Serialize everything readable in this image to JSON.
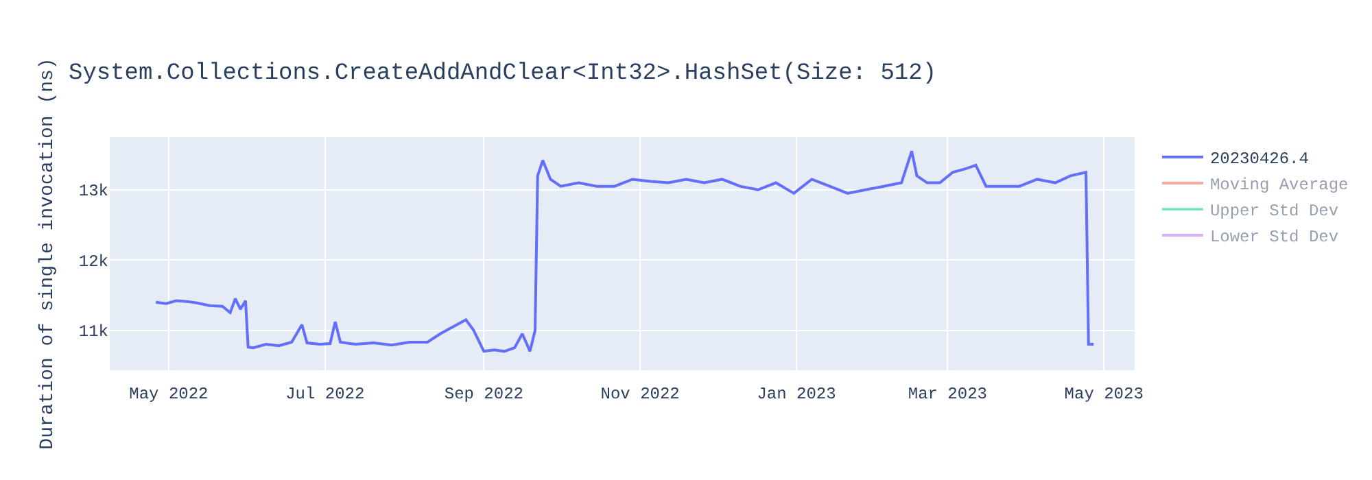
{
  "chart_data": {
    "type": "line",
    "title": "System.Collections.CreateAddAndClear<Int32>.HashSet(Size: 512)",
    "ylabel": "Duration of single invocation (ns)",
    "xlim": [
      "2022-04-08",
      "2023-05-13"
    ],
    "xticks": [
      {
        "value": "2022-05-01",
        "label": "May 2022"
      },
      {
        "value": "2022-07-01",
        "label": "Jul 2022"
      },
      {
        "value": "2022-09-01",
        "label": "Sep 2022"
      },
      {
        "value": "2022-11-01",
        "label": "Nov 2022"
      },
      {
        "value": "2023-01-01",
        "label": "Jan 2023"
      },
      {
        "value": "2023-03-01",
        "label": "Mar 2023"
      },
      {
        "value": "2023-05-01",
        "label": "May 2023"
      }
    ],
    "ylim": [
      10430,
      13750
    ],
    "yticks": [
      {
        "value": 11000,
        "label": "11k"
      },
      {
        "value": 12000,
        "label": "12k"
      },
      {
        "value": 13000,
        "label": "13k"
      }
    ],
    "grid": true,
    "legend": "top right",
    "line_style": "solid",
    "series": [
      {
        "name": "20230426.4",
        "color": "#636efa",
        "x": [
          "2022-04-26",
          "2022-04-30",
          "2022-05-04",
          "2022-05-08",
          "2022-05-12",
          "2022-05-17",
          "2022-05-22",
          "2022-05-25",
          "2022-05-27",
          "2022-05-29",
          "2022-05-31",
          "2022-06-01",
          "2022-06-03",
          "2022-06-08",
          "2022-06-13",
          "2022-06-18",
          "2022-06-22",
          "2022-06-24",
          "2022-06-29",
          "2022-07-03",
          "2022-07-05",
          "2022-07-07",
          "2022-07-13",
          "2022-07-20",
          "2022-07-27",
          "2022-08-03",
          "2022-08-10",
          "2022-08-15",
          "2022-08-20",
          "2022-08-25",
          "2022-08-28",
          "2022-09-01",
          "2022-09-05",
          "2022-09-09",
          "2022-09-13",
          "2022-09-16",
          "2022-09-19",
          "2022-09-21",
          "2022-09-22",
          "2022-09-24",
          "2022-09-27",
          "2022-10-01",
          "2022-10-08",
          "2022-10-15",
          "2022-10-22",
          "2022-10-29",
          "2022-11-05",
          "2022-11-12",
          "2022-11-19",
          "2022-11-26",
          "2022-12-03",
          "2022-12-10",
          "2022-12-17",
          "2022-12-24",
          "2022-12-31",
          "2023-01-07",
          "2023-01-14",
          "2023-01-21",
          "2023-01-28",
          "2023-02-04",
          "2023-02-11",
          "2023-02-15",
          "2023-02-17",
          "2023-02-21",
          "2023-02-26",
          "2023-03-03",
          "2023-03-08",
          "2023-03-12",
          "2023-03-16",
          "2023-03-22",
          "2023-03-29",
          "2023-04-05",
          "2023-04-12",
          "2023-04-18",
          "2023-04-24",
          "2023-04-25",
          "2023-04-27"
        ],
        "values": [
          11400,
          11380,
          11420,
          11410,
          11390,
          11350,
          11340,
          11250,
          11450,
          11300,
          11420,
          10760,
          10750,
          10800,
          10780,
          10830,
          11080,
          10820,
          10800,
          10810,
          11120,
          10830,
          10800,
          10820,
          10790,
          10830,
          10830,
          10950,
          11050,
          11150,
          11000,
          10700,
          10720,
          10700,
          10750,
          10950,
          10700,
          11000,
          13200,
          13420,
          13150,
          13050,
          13100,
          13050,
          13050,
          13150,
          13120,
          13100,
          13150,
          13100,
          13150,
          13050,
          13000,
          13100,
          12950,
          13150,
          13050,
          12950,
          13000,
          13050,
          13100,
          13550,
          13200,
          13100,
          13100,
          13250,
          13300,
          13350,
          13050,
          13050,
          13050,
          13150,
          13100,
          13200,
          13250,
          10800,
          10800
        ]
      },
      {
        "name": "Moving Average",
        "color": "#ef553b",
        "values": [
          null
        ]
      },
      {
        "name": "Upper Std Dev",
        "color": "#00cc96",
        "values": [
          null
        ]
      },
      {
        "name": "Lower Std Dev",
        "color": "#ab63fa",
        "values": [
          null
        ]
      }
    ]
  }
}
